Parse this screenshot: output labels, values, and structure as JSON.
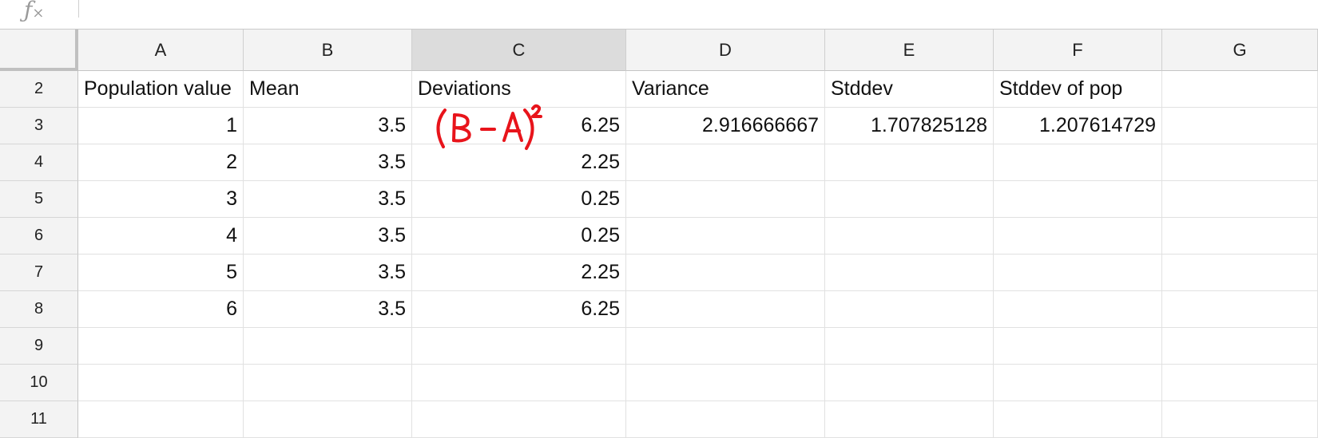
{
  "formula_bar": {
    "fx_label": "fx",
    "value": ""
  },
  "columns": [
    "A",
    "B",
    "C",
    "D",
    "E",
    "F",
    "G"
  ],
  "selected_column": "C",
  "rows": [
    {
      "row": "2",
      "cells": [
        "Population value",
        "Mean",
        "Deviations",
        "Variance",
        "Stddev",
        "Stddev of pop",
        ""
      ]
    },
    {
      "row": "3",
      "cells": [
        "1",
        "3.5",
        "6.25",
        "2.916666667",
        "1.707825128",
        "1.207614729",
        ""
      ]
    },
    {
      "row": "4",
      "cells": [
        "2",
        "3.5",
        "2.25",
        "",
        "",
        "",
        ""
      ]
    },
    {
      "row": "5",
      "cells": [
        "3",
        "3.5",
        "0.25",
        "",
        "",
        "",
        ""
      ]
    },
    {
      "row": "6",
      "cells": [
        "4",
        "3.5",
        "0.25",
        "",
        "",
        "",
        ""
      ]
    },
    {
      "row": "7",
      "cells": [
        "5",
        "3.5",
        "2.25",
        "",
        "",
        "",
        ""
      ]
    },
    {
      "row": "8",
      "cells": [
        "6",
        "3.5",
        "6.25",
        "",
        "",
        "",
        ""
      ]
    },
    {
      "row": "9",
      "cells": [
        "",
        "",
        "",
        "",
        "",
        "",
        ""
      ]
    },
    {
      "row": "10",
      "cells": [
        "",
        "",
        "",
        "",
        "",
        "",
        ""
      ]
    },
    {
      "row": "11",
      "cells": [
        "",
        "",
        "",
        "",
        "",
        "",
        ""
      ]
    }
  ],
  "annotation": {
    "text": "(B-A)²",
    "color": "#e8141b"
  },
  "colors": {
    "header_bg": "#f3f3f3",
    "selected_header_bg": "#dcdcdc",
    "gridline": "#e1e1e1"
  }
}
